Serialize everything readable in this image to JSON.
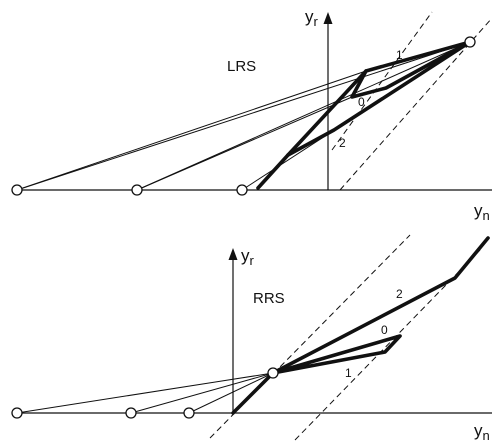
{
  "top_panel": {
    "name": "LRS",
    "axis_y": "y",
    "axis_y_sub": "r",
    "axis_x": "y",
    "axis_x_sub": "n",
    "line_labels": [
      "1",
      "0",
      "2"
    ]
  },
  "bottom_panel": {
    "name": "RRS",
    "axis_y": "y",
    "axis_y_sub": "r",
    "axis_x": "y",
    "axis_x_sub": "n",
    "line_labels": [
      "2",
      "0",
      "1"
    ]
  }
}
